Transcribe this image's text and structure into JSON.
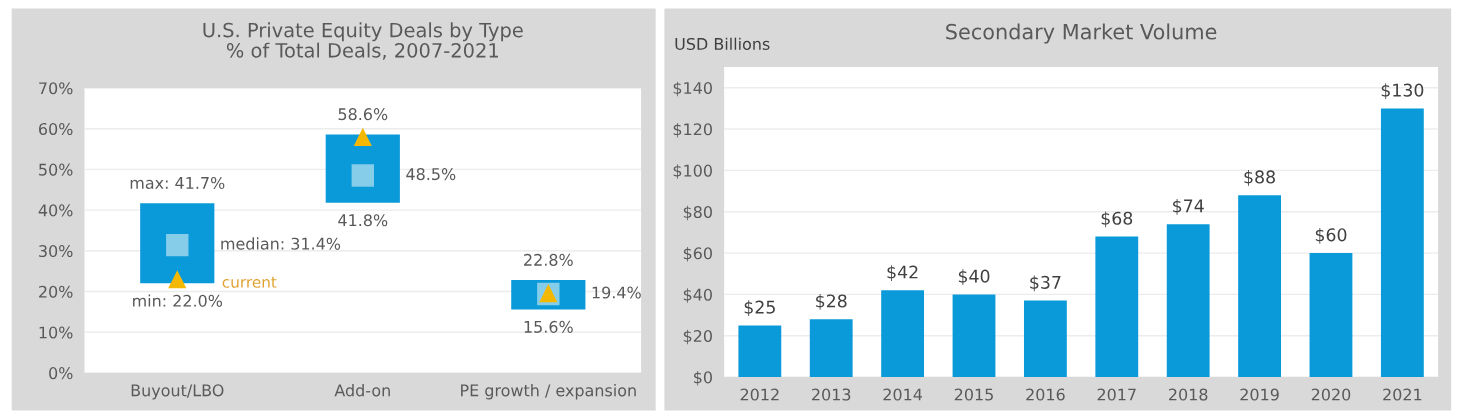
{
  "chart_data": [
    {
      "type": "bar",
      "title": "U.S. Private Equity Deals by Type",
      "subtitle": "% of Total Deals, 2007-2021",
      "categories": [
        "Buyout/LBO",
        "Add-on",
        "PE growth / expansion"
      ],
      "series": [
        {
          "type": "bar",
          "color": "#0a9ad9",
          "base": [
            22.0,
            41.8,
            15.6
          ],
          "values": [
            19.7,
            16.8,
            7.2
          ]
        },
        {
          "type": "scatter",
          "marker": "square",
          "color": "#86cdea",
          "values": [
            31.4,
            48.5,
            19.4
          ]
        },
        {
          "type": "scatter",
          "name": "current",
          "marker": "triangle",
          "color": "#f5b800",
          "values": [
            23.0,
            58.0,
            19.6
          ]
        }
      ],
      "ylim": [
        0,
        70
      ],
      "yticks": [
        {
          "value": 0,
          "label": "0%"
        },
        {
          "value": 10,
          "label": "10%"
        },
        {
          "value": 20,
          "label": "20%"
        },
        {
          "value": 30,
          "label": "30%"
        },
        {
          "value": 40,
          "label": "40%"
        },
        {
          "value": 50,
          "label": "50%"
        },
        {
          "value": 60,
          "label": "60%"
        },
        {
          "value": 70,
          "label": "70%"
        }
      ],
      "grid": "y",
      "annotations": [
        {
          "text": "max: 41.7%",
          "x": "Buyout/LBO",
          "y": 41.7
        },
        {
          "text": "median: 31.4%",
          "x": "Buyout/LBO",
          "y": 31.4
        },
        {
          "text": "min: 22.0%",
          "x": "Buyout/LBO",
          "y": 22.0
        },
        {
          "text": "58.6%",
          "x": "Add-on",
          "y": 58.6
        },
        {
          "text": "48.5%",
          "x": "Add-on",
          "y": 48.5
        },
        {
          "text": "41.8%",
          "x": "Add-on",
          "y": 41.8
        },
        {
          "text": "22.8%",
          "x": "PE growth / expansion",
          "y": 22.8
        },
        {
          "text": "19.4%",
          "x": "PE growth / expansion",
          "y": 19.4
        },
        {
          "text": "15.6%",
          "x": "PE growth / expansion",
          "y": 15.6
        }
      ]
    },
    {
      "type": "bar",
      "title": "Secondary Market Volume",
      "ylabel": "USD Billions",
      "categories": [
        "2012",
        "2013",
        "2014",
        "2015",
        "2016",
        "2017",
        "2018",
        "2019",
        "2020",
        "2021"
      ],
      "series": [
        {
          "color": "#0a9ad9",
          "values": [
            25,
            28,
            42,
            40,
            37,
            68,
            74,
            88,
            60,
            130
          ],
          "value_labels": [
            "$25",
            "$28",
            "$42",
            "$40",
            "$37",
            "$68",
            "$74",
            "$88",
            "$60",
            "$130"
          ]
        }
      ],
      "ylim": [
        0,
        150
      ],
      "yticks": [
        {
          "value": 0,
          "label": "$0"
        },
        {
          "value": 20,
          "label": "$20"
        },
        {
          "value": 40,
          "label": "$40"
        },
        {
          "value": 60,
          "label": "$60"
        },
        {
          "value": 80,
          "label": "$80"
        },
        {
          "value": 100,
          "label": "$100"
        },
        {
          "value": 120,
          "label": "$120"
        },
        {
          "value": 140,
          "label": "$140"
        }
      ],
      "grid": "y"
    }
  ]
}
